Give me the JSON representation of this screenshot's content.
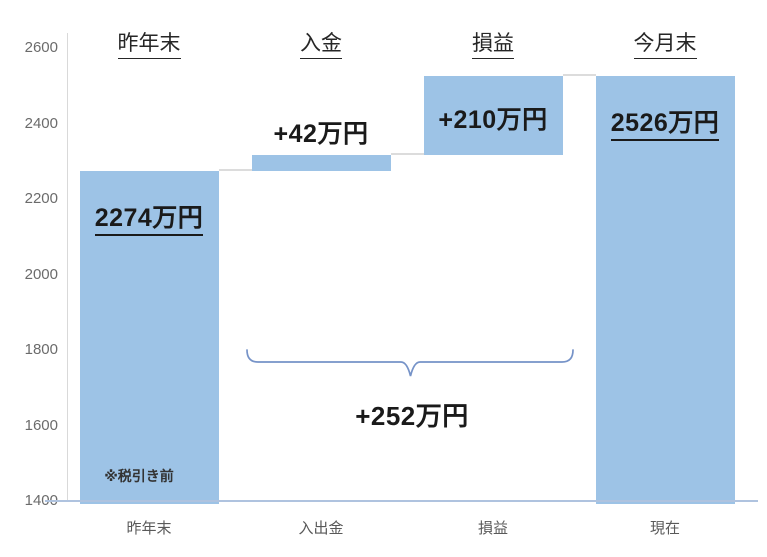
{
  "chart_data": {
    "type": "bar",
    "variant": "waterfall",
    "title": "",
    "xlabel": "",
    "ylabel": "",
    "ylim": [
      1400,
      2600
    ],
    "yticks": [
      2600,
      2400,
      2200,
      2000,
      1800,
      1600,
      1400
    ],
    "grid": false,
    "legend": false,
    "bar_color": "#9DC3E6",
    "bars": [
      {
        "x_label": "昨年末",
        "header": "昨年末",
        "from": 1400,
        "to": 2274,
        "value_label": "2274万円",
        "label_underline": true,
        "label_position": "inside-top"
      },
      {
        "x_label": "入出金",
        "header": "入金",
        "from": 2274,
        "to": 2316,
        "value_label": "+42万円",
        "label_underline": false,
        "label_position": "above"
      },
      {
        "x_label": "損益",
        "header": "損益",
        "from": 2316,
        "to": 2526,
        "value_label": "+210万円",
        "label_underline": false,
        "label_position": "inside-middle"
      },
      {
        "x_label": "現在",
        "header": "今月末",
        "from": 1400,
        "to": 2526,
        "value_label": "2526万円",
        "label_underline": true,
        "label_position": "inside-top"
      }
    ],
    "bracket": {
      "label": "+252万円",
      "spans_categories": [
        "入出金",
        "損益"
      ],
      "color": "#7693C8"
    },
    "footnote": "※税引き前",
    "colors": {
      "bar_fill": "#9DC3E6",
      "baseline": "#AFC3DF",
      "axis_line": "#D9D9D9",
      "connector": "#DCDCDC",
      "tick_text": "#6b6b6b",
      "label_text": "#1a1a1a"
    }
  }
}
